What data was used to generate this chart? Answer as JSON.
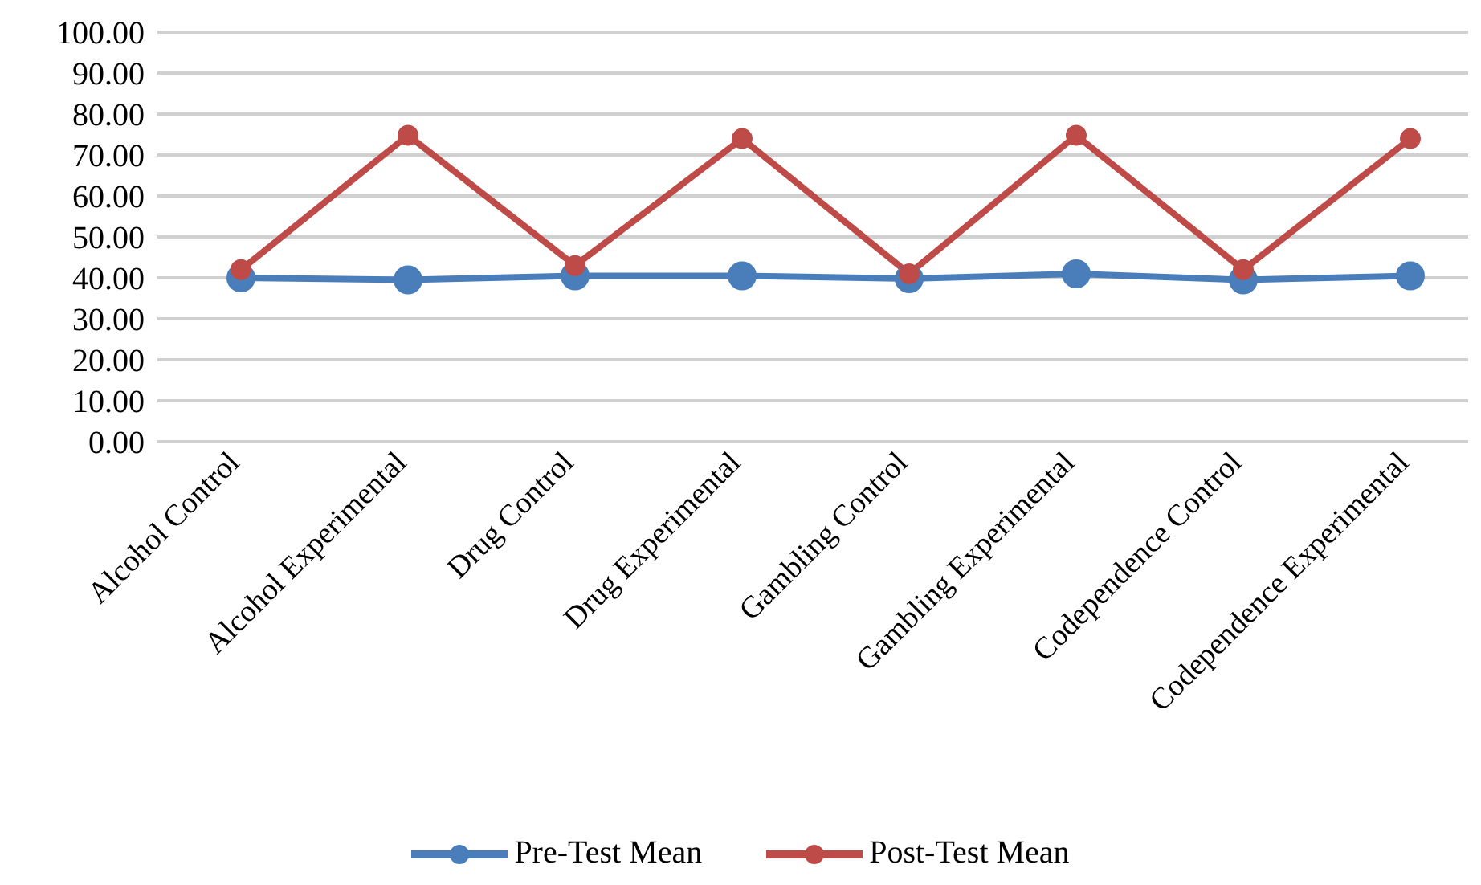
{
  "chart_data": {
    "type": "line",
    "categories": [
      "Alcohol Control",
      "Alcohol Experimental",
      "Drug Control",
      "Drug Experimental",
      "Gambling Control",
      "Gambling Experimental",
      "Codependence Control",
      "Codependence Experimental"
    ],
    "series": [
      {
        "name": "Pre-Test Mean",
        "color": "#4a7ebb",
        "values": [
          40,
          39.5,
          40.5,
          40.5,
          39.8,
          41,
          39.5,
          40.5
        ]
      },
      {
        "name": "Post-Test Mean",
        "color": "#be4b48",
        "values": [
          42,
          74.8,
          43,
          74,
          41,
          74.8,
          42,
          74
        ]
      }
    ],
    "ylim": [
      0,
      100
    ],
    "yticks": [
      {
        "value": 0,
        "label": "0.00"
      },
      {
        "value": 10,
        "label": "10.00"
      },
      {
        "value": 20,
        "label": "20.00"
      },
      {
        "value": 30,
        "label": "30.00"
      },
      {
        "value": 40,
        "label": "40.00"
      },
      {
        "value": 50,
        "label": "50.00"
      },
      {
        "value": 60,
        "label": "60.00"
      },
      {
        "value": 70,
        "label": "70.00"
      },
      {
        "value": 80,
        "label": "80.00"
      },
      {
        "value": 90,
        "label": "90.00"
      },
      {
        "value": 100,
        "label": "100.00"
      }
    ],
    "grid": "y",
    "legend": "bottom",
    "marker": "circle",
    "line_style": "solid"
  }
}
